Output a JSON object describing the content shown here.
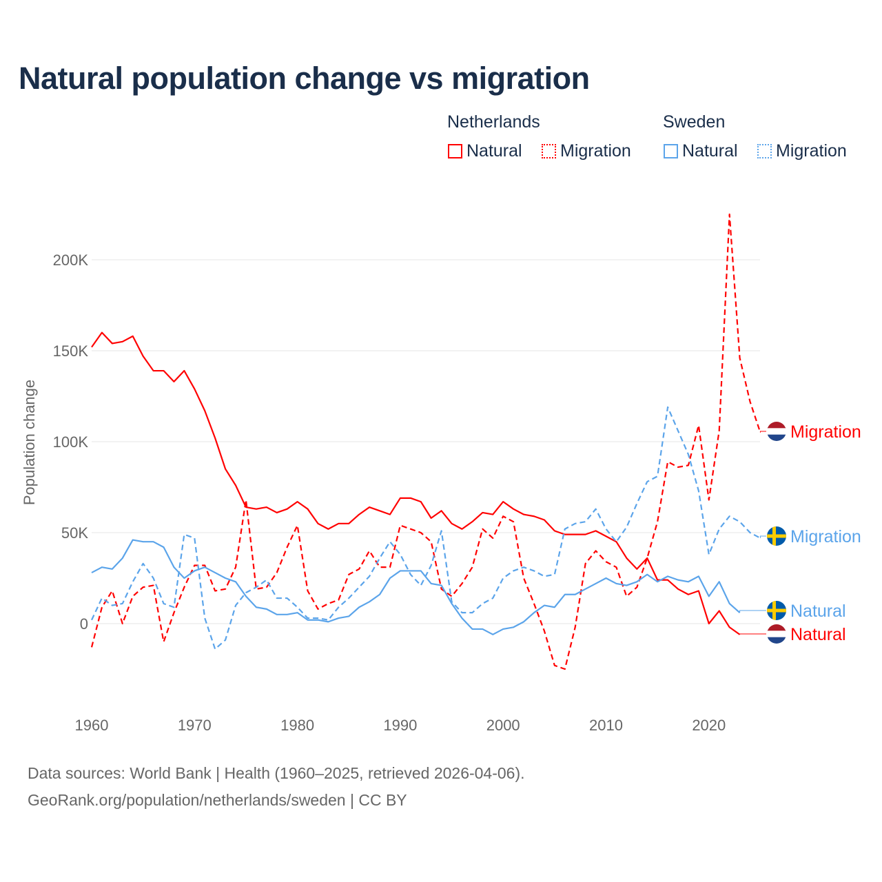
{
  "title": "Natural population change vs migration",
  "legend": {
    "groups": [
      {
        "name": "Netherlands",
        "items": [
          {
            "label": "Natural",
            "style": "solid",
            "color": "#ff0000"
          },
          {
            "label": "Migration",
            "style": "dotted",
            "color": "#ff0000"
          }
        ]
      },
      {
        "name": "Sweden",
        "items": [
          {
            "label": "Natural",
            "style": "solid",
            "color": "#5ba4ea"
          },
          {
            "label": "Migration",
            "style": "dotted",
            "color": "#5ba4ea"
          }
        ]
      }
    ]
  },
  "footer": {
    "line1": "Data sources: World Bank | Health (1960–2025, retrieved 2026-04-06).",
    "line2": "GeoRank.org/population/netherlands/sweden | CC BY"
  },
  "chart_data": {
    "type": "line",
    "title": "Natural population change vs migration",
    "xlabel": "",
    "ylabel": "Population change",
    "xlim": [
      1960,
      2025
    ],
    "ylim": [
      -40000,
      225000
    ],
    "x_ticks": [
      "1960",
      "1970",
      "1980",
      "1990",
      "2000",
      "2010",
      "2020"
    ],
    "y_ticks": [
      {
        "value": 0,
        "label": "0"
      },
      {
        "value": 50000,
        "label": "50K"
      },
      {
        "value": 100000,
        "label": "100K"
      },
      {
        "value": 150000,
        "label": "150K"
      },
      {
        "value": 200000,
        "label": "200K"
      }
    ],
    "grid": true,
    "series": [
      {
        "name": "Netherlands Natural",
        "end_label": "Natural",
        "country": "Netherlands",
        "color": "#ff0000",
        "dash": false,
        "start": 1960,
        "values_k": [
          152,
          160,
          154,
          155,
          158,
          147,
          139,
          139,
          133,
          139,
          129,
          117,
          102,
          85,
          76,
          64,
          63,
          64,
          61,
          63,
          67,
          63,
          55,
          52,
          55,
          55,
          60,
          64,
          62,
          60,
          69,
          69,
          67,
          58,
          62,
          55,
          52,
          56,
          61,
          60,
          67,
          63,
          60,
          59,
          57,
          51,
          49,
          49,
          49,
          51,
          48,
          45,
          36,
          30,
          36,
          24,
          24,
          19,
          16,
          18,
          0,
          7,
          -2,
          -6
        ]
      },
      {
        "name": "Netherlands Migration",
        "end_label": "Migration",
        "country": "Netherlands",
        "color": "#ff0000",
        "dash": true,
        "start": 1960,
        "values_k": [
          -13,
          9,
          18,
          0,
          15,
          20,
          21,
          -10,
          6,
          20,
          32,
          32,
          18,
          19,
          31,
          68,
          19,
          20,
          28,
          42,
          54,
          18,
          8,
          11,
          13,
          27,
          30,
          40,
          31,
          31,
          54,
          52,
          50,
          45,
          19,
          15,
          22,
          31,
          52,
          47,
          59,
          56,
          25,
          11,
          -4,
          -23,
          -25,
          -2,
          33,
          40,
          34,
          31,
          15,
          20,
          36,
          56,
          89,
          86,
          87,
          109,
          68,
          106,
          225,
          146,
          122,
          105
        ]
      },
      {
        "name": "Sweden Natural",
        "end_label": "Natural",
        "country": "Sweden",
        "color": "#5ba4ea",
        "dash": false,
        "start": 1960,
        "values_k": [
          28,
          31,
          30,
          36,
          46,
          45,
          45,
          42,
          31,
          25,
          29,
          31,
          28,
          25,
          23,
          15,
          9,
          8,
          5,
          5,
          6,
          2,
          2,
          1,
          3,
          4,
          9,
          12,
          16,
          25,
          29,
          29,
          29,
          22,
          21,
          11,
          3,
          -3,
          -3,
          -6,
          -3,
          -2,
          1,
          6,
          10,
          9,
          16,
          16,
          19,
          22,
          25,
          22,
          21,
          23,
          27,
          23,
          26,
          24,
          23,
          26,
          15,
          23,
          11,
          6
        ]
      },
      {
        "name": "Sweden Migration",
        "end_label": "Migration",
        "country": "Sweden",
        "color": "#5ba4ea",
        "dash": true,
        "start": 1960,
        "values_k": [
          2,
          14,
          10,
          11,
          23,
          33,
          25,
          11,
          9,
          49,
          47,
          3,
          -14,
          -9,
          10,
          17,
          20,
          24,
          14,
          14,
          9,
          3,
          3,
          2,
          9,
          14,
          20,
          26,
          36,
          45,
          38,
          27,
          21,
          32,
          51,
          12,
          6,
          6,
          11,
          14,
          25,
          29,
          31,
          29,
          26,
          27,
          52,
          55,
          56,
          63,
          52,
          45,
          53,
          66,
          78,
          81,
          119,
          106,
          93,
          73,
          38,
          52,
          59,
          56,
          50,
          47
        ]
      }
    ],
    "end_labels": [
      {
        "series": "Netherlands Migration",
        "label": "Migration"
      },
      {
        "series": "Sweden Migration",
        "label": "Migration"
      },
      {
        "series": "Sweden Natural",
        "label": "Natural"
      },
      {
        "series": "Netherlands Natural",
        "label": "Natural"
      }
    ]
  }
}
